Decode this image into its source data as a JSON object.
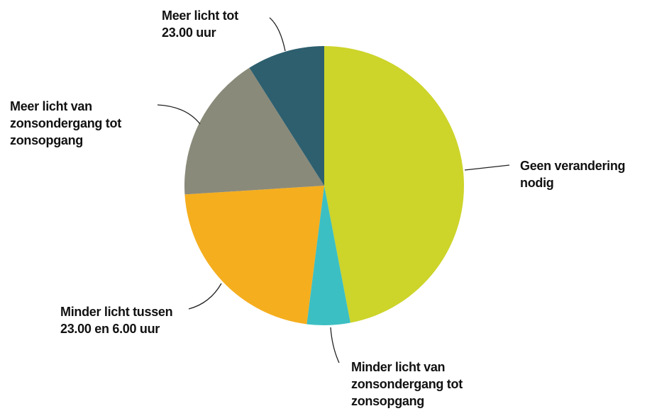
{
  "chart_data": {
    "type": "pie",
    "categories": [
      "Geen verandering nodig",
      "Minder licht van zonsondergang tot zonsopgang",
      "Minder licht tussen 23.00 en 6.00 uur",
      "Meer licht van zonsondergang tot zonsopgang",
      "Meer licht tot 23.00 uur"
    ],
    "values": [
      47,
      5,
      22,
      17,
      9
    ],
    "colors": [
      "#cdd42a",
      "#3cbfc3",
      "#f5ae1e",
      "#8a8a7a",
      "#2d5f6e"
    ]
  }
}
